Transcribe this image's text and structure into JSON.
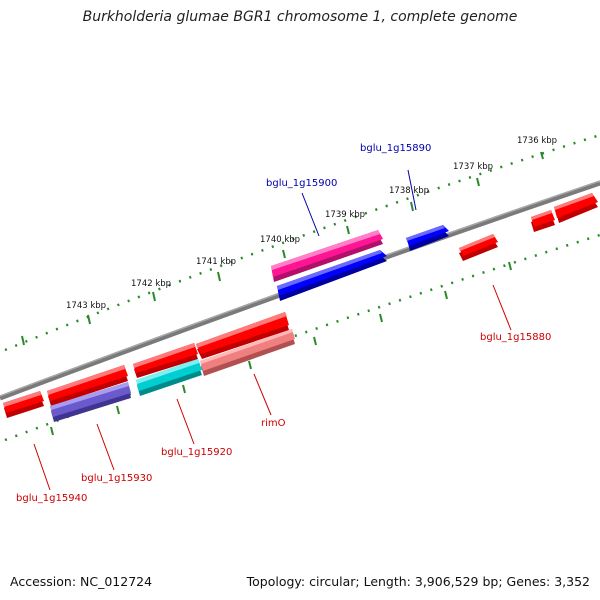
{
  "title": "Burkholderia glumae BGR1 chromosome 1, complete genome",
  "footer": {
    "accession": "Accession: NC_012724",
    "topology": "Topology: circular; Length: 3,906,529 bp; Genes: 3,352"
  },
  "kbp_labels": [
    "1736 kbp",
    "1737 kbp",
    "1738 kbp",
    "1739 kbp",
    "1740 kbp",
    "1741 kbp",
    "1742 kbp",
    "1743 kbp"
  ],
  "colors": {
    "backbone": "#808080",
    "tick": "#2a8a2a",
    "red": "#ff0000",
    "blue": "#0000ee",
    "magenta": "#ff1493",
    "purple": "#6a5acd",
    "cyan": "#00ced1",
    "salmon": "#f08080",
    "label_red": "#cc0000",
    "label_blue": "#0000aa"
  },
  "gene_labels": {
    "bglu_1g15890": "bglu_1g15890",
    "bglu_1g15900": "bglu_1g15900",
    "bglu_1g15880": "bglu_1g15880",
    "rimO": "rimO",
    "bglu_1g15920": "bglu_1g15920",
    "bglu_1g15930": "bglu_1g15930",
    "bglu_1g15940": "bglu_1g15940"
  }
}
